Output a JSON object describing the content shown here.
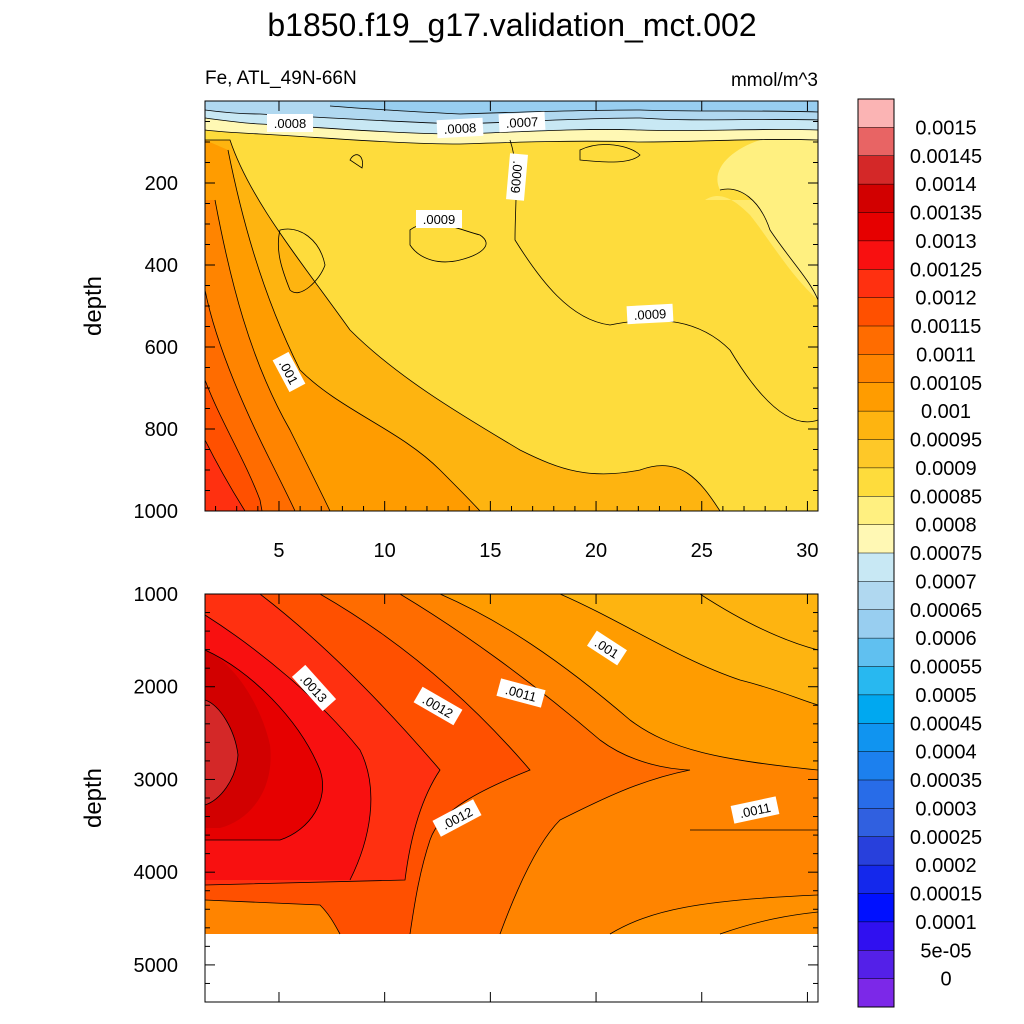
{
  "chart_data": {
    "type": "contour",
    "title": "b1850.f19_g17.validation_mct.002",
    "variable_label": "Fe, ATL_49N-66N",
    "units_label": "mmol/m^3",
    "upper_panel": {
      "ylabel": "depth",
      "xlim": [
        1.5,
        30.5
      ],
      "ylim": [
        1000,
        0
      ],
      "x_ticks": [
        "5",
        "10",
        "15",
        "20",
        "25",
        "30"
      ],
      "y_ticks": [
        "200",
        "400",
        "600",
        "800",
        "1000"
      ],
      "contour_labels": [
        ".0008",
        ".0008",
        ".0007",
        ".0009",
        ".0009",
        ".0009",
        ".001"
      ]
    },
    "lower_panel": {
      "ylabel": "depth",
      "ylim": [
        5400,
        1000
      ],
      "y_ticks": [
        "1000",
        "2000",
        "3000",
        "4000",
        "5000"
      ],
      "contour_labels": [
        ".001",
        ".0013",
        ".0012",
        ".0011",
        ".0012",
        ".0011"
      ],
      "data_bottom": 4620
    },
    "colorbar": {
      "labels": [
        "0.0015",
        "0.00145",
        "0.0014",
        "0.00135",
        "0.0013",
        "0.00125",
        "0.0012",
        "0.00115",
        "0.0011",
        "0.00105",
        "0.001",
        "0.00095",
        "0.0009",
        "0.00085",
        "0.0008",
        "0.00075",
        "0.0007",
        "0.00065",
        "0.0006",
        "0.00055",
        "0.0005",
        "0.00045",
        "0.0004",
        "0.00035",
        "0.0003",
        "0.00025",
        "0.0002",
        "0.00015",
        "0.0001",
        "5e-05",
        "0"
      ],
      "colors_top_to_bottom": [
        "#fbb4b4",
        "#e86464",
        "#d42828",
        "#d20000",
        "#e60000",
        "#f81010",
        "#ff3010",
        "#ff5000",
        "#ff6c00",
        "#ff8400",
        "#ff9c00",
        "#feb410",
        "#fec828",
        "#fedc3c",
        "#fff080",
        "#fff8b4",
        "#c8e8f4",
        "#b0d8f0",
        "#98cef0",
        "#60c0f0",
        "#28b8f0",
        "#00a8f0",
        "#1094f0",
        "#1c80ee",
        "#286ce8",
        "#3060e0",
        "#2840dc",
        "#1428ec",
        "#0010ff",
        "#3010f0",
        "#5420e8",
        "#7c28e8"
      ]
    }
  }
}
